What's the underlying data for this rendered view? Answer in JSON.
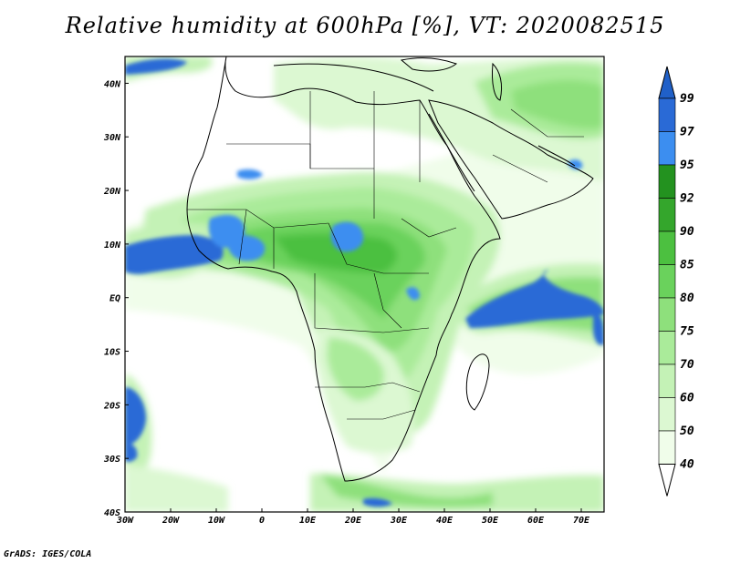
{
  "title": "Relative humidity at 600hPa [%], VT: 2020082515",
  "credit": "GrADS: IGES/COLA",
  "map": {
    "lon_range": [
      -30,
      75
    ],
    "lat_range": [
      -40,
      45
    ],
    "xticks": [
      {
        "value": -30,
        "label": "30W"
      },
      {
        "value": -20,
        "label": "20W"
      },
      {
        "value": -10,
        "label": "10W"
      },
      {
        "value": 0,
        "label": "0"
      },
      {
        "value": 10,
        "label": "10E"
      },
      {
        "value": 20,
        "label": "20E"
      },
      {
        "value": 30,
        "label": "30E"
      },
      {
        "value": 40,
        "label": "40E"
      },
      {
        "value": 50,
        "label": "50E"
      },
      {
        "value": 60,
        "label": "60E"
      },
      {
        "value": 70,
        "label": "70E"
      }
    ],
    "yticks": [
      {
        "value": 40,
        "label": "40N"
      },
      {
        "value": 30,
        "label": "30N"
      },
      {
        "value": 20,
        "label": "20N"
      },
      {
        "value": 10,
        "label": "10N"
      },
      {
        "value": 0,
        "label": "EQ"
      },
      {
        "value": -10,
        "label": "10S"
      },
      {
        "value": -20,
        "label": "20S"
      },
      {
        "value": -30,
        "label": "30S"
      },
      {
        "value": -40,
        "label": "40S"
      }
    ]
  },
  "colorbar": {
    "levels": [
      "99",
      "97",
      "95",
      "92",
      "90",
      "85",
      "80",
      "75",
      "70",
      "60",
      "50",
      "40"
    ],
    "colors": [
      "#2a6ad6",
      "#3c8ef0",
      "#23921f",
      "#34a62c",
      "#4cc040",
      "#6ad25c",
      "#8ee07c",
      "#aaeb9a",
      "#c4f2b6",
      "#dcf8d2",
      "#f0fdea"
    ],
    "top_color": "#2060c8",
    "bottom_color": "#ffffff"
  },
  "chart_data": {
    "type": "heatmap",
    "title": "Relative humidity at 600hPa [%], VT: 2020082515",
    "x_range": [
      -30,
      75
    ],
    "y_range": [
      -40,
      45
    ],
    "colorbar_levels": [
      40,
      50,
      60,
      70,
      75,
      80,
      85,
      90,
      92,
      95,
      97,
      99
    ],
    "regions": [
      {
        "lon": 20,
        "lat": 12,
        "rx": 26,
        "ry": 8,
        "level": 75
      },
      {
        "lon": 28,
        "lat": 5,
        "rx": 14,
        "ry": 10,
        "level": 80
      },
      {
        "lon": 5,
        "lat": 10,
        "rx": 22,
        "ry": 5,
        "level": 85
      },
      {
        "lon": -18,
        "lat": 9,
        "rx": 14,
        "ry": 3,
        "level": 97
      },
      {
        "lon": 21,
        "lat": 11,
        "rx": 3,
        "ry": 2,
        "level": 97
      },
      {
        "lon": -3,
        "lat": 11,
        "rx": 5,
        "ry": 2.5,
        "level": 97
      },
      {
        "lon": 60,
        "lat": -2,
        "rx": 14,
        "ry": 4,
        "level": 97
      },
      {
        "lon": 58,
        "lat": -1,
        "rx": 22,
        "ry": 7,
        "level": 75
      },
      {
        "lon": 24,
        "lat": -13,
        "rx": 9,
        "ry": 9,
        "level": 70
      },
      {
        "lon": 45,
        "lat": 35,
        "rx": 18,
        "ry": 8,
        "level": 60
      },
      {
        "lon": -25,
        "lat": 43,
        "rx": 6,
        "ry": 1.5,
        "level": 97
      },
      {
        "lon": -28,
        "lat": -25,
        "rx": 2,
        "ry": 6,
        "level": 97
      },
      {
        "lon": 34,
        "lat": -38,
        "rx": 18,
        "ry": 2,
        "level": 70
      }
    ]
  }
}
